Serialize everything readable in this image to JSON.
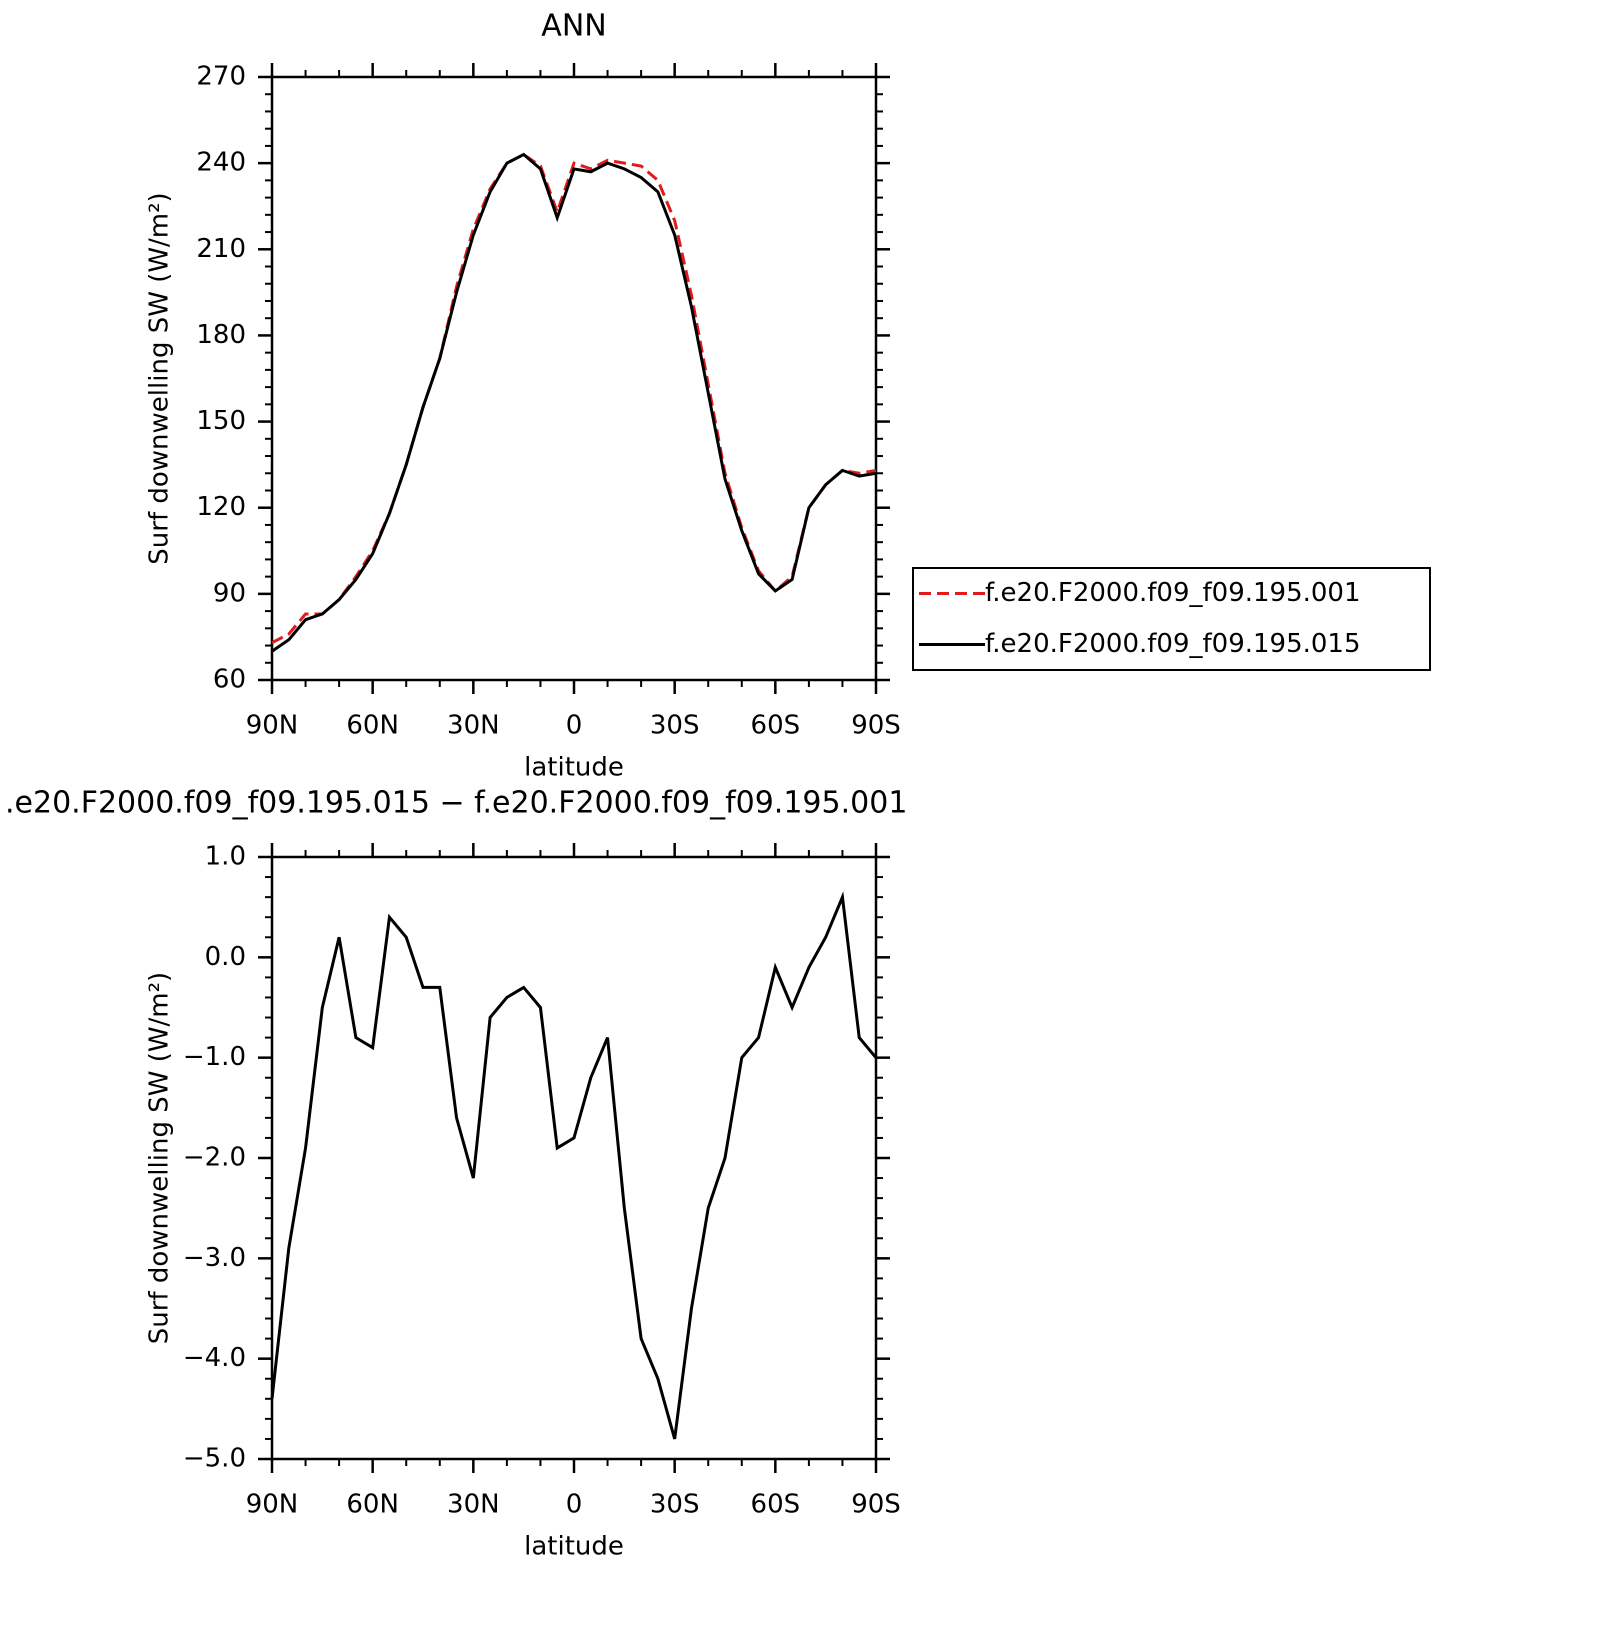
{
  "chart_data": [
    {
      "type": "line",
      "title": "ANN",
      "xlabel": "latitude",
      "ylabel": "Surf downwelling SW (W/m²)",
      "x": [
        90,
        85,
        80,
        75,
        70,
        65,
        60,
        55,
        50,
        45,
        40,
        35,
        30,
        25,
        20,
        15,
        10,
        5,
        0,
        -5,
        -10,
        -15,
        -20,
        -25,
        -30,
        -35,
        -40,
        -45,
        -50,
        -55,
        -60,
        -65,
        -70,
        -75,
        -80,
        -85,
        -90
      ],
      "xlim": [
        90,
        -90
      ],
      "xticks": [
        {
          "value": 90,
          "label": "90N"
        },
        {
          "value": 60,
          "label": "60N"
        },
        {
          "value": 30,
          "label": "30N"
        },
        0,
        {
          "value": -30,
          "label": "30S"
        },
        {
          "value": -60,
          "label": "60S"
        },
        {
          "value": -90,
          "label": "90S"
        }
      ],
      "ylim": [
        60,
        270
      ],
      "yticks": [
        60,
        90,
        120,
        150,
        180,
        210,
        240,
        270
      ],
      "series": [
        {
          "name": "f.e20.F2000.f09_f09.195.001",
          "color": "#e31a1c",
          "dash": true,
          "values": [
            73,
            76,
            83,
            83,
            88,
            96,
            105,
            118,
            135,
            155,
            172,
            197,
            217,
            231,
            240,
            243,
            239,
            223,
            240,
            238,
            241,
            240,
            239,
            234,
            220,
            194,
            163,
            132,
            113,
            98,
            91,
            96,
            120,
            128,
            133,
            132,
            133
          ]
        },
        {
          "name": "f.e20.F2000.f09_f09.195.015",
          "color": "#000000",
          "dash": false,
          "values": [
            70,
            74,
            81,
            83,
            88,
            95,
            104,
            118,
            135,
            155,
            172,
            195,
            215,
            230,
            240,
            243,
            238,
            221,
            238,
            237,
            240,
            238,
            235,
            230,
            215,
            190,
            160,
            130,
            112,
            97,
            91,
            95,
            120,
            128,
            133,
            131,
            132
          ]
        }
      ]
    },
    {
      "type": "line",
      "title": ".e20.F2000.f09_f09.195.015 − f.e20.F2000.f09_f09.195.001",
      "xlabel": "latitude",
      "ylabel": "Surf downwelling SW (W/m²)",
      "x": [
        90,
        85,
        80,
        75,
        70,
        65,
        60,
        55,
        50,
        45,
        40,
        35,
        30,
        25,
        20,
        15,
        10,
        5,
        0,
        -5,
        -10,
        -15,
        -20,
        -25,
        -30,
        -35,
        -40,
        -45,
        -50,
        -55,
        -60,
        -65,
        -70,
        -75,
        -80,
        -85,
        -90
      ],
      "xlim": [
        90,
        -90
      ],
      "xticks": [
        {
          "value": 90,
          "label": "90N"
        },
        {
          "value": 60,
          "label": "60N"
        },
        {
          "value": 30,
          "label": "30N"
        },
        0,
        {
          "value": -30,
          "label": "30S"
        },
        {
          "value": -60,
          "label": "60S"
        },
        {
          "value": -90,
          "label": "90S"
        }
      ],
      "ylim": [
        -5,
        1
      ],
      "yticks": [
        {
          "value": -5,
          "label": "−5.0"
        },
        {
          "value": -4,
          "label": "−4.0"
        },
        {
          "value": -3,
          "label": "−3.0"
        },
        {
          "value": -2,
          "label": "−2.0"
        },
        {
          "value": -1,
          "label": "−1.0"
        },
        {
          "value": 0,
          "label": "0.0"
        },
        {
          "value": 1,
          "label": "1.0"
        }
      ],
      "series": [
        {
          "color": "#000000",
          "dash": false,
          "values": [
            -4.4,
            -2.9,
            -1.9,
            -0.5,
            0.2,
            -0.8,
            -0.9,
            0.4,
            0.2,
            -0.3,
            -0.3,
            -1.6,
            -2.2,
            -0.6,
            -0.4,
            -0.3,
            -0.5,
            -1.9,
            -1.8,
            -1.2,
            -0.8,
            -2.5,
            -3.8,
            -4.2,
            -4.8,
            -3.5,
            -2.5,
            -2.0,
            -1.0,
            -0.8,
            -0.1,
            -0.5,
            -0.1,
            0.2,
            0.6,
            -0.8,
            -1.0
          ]
        }
      ]
    }
  ]
}
